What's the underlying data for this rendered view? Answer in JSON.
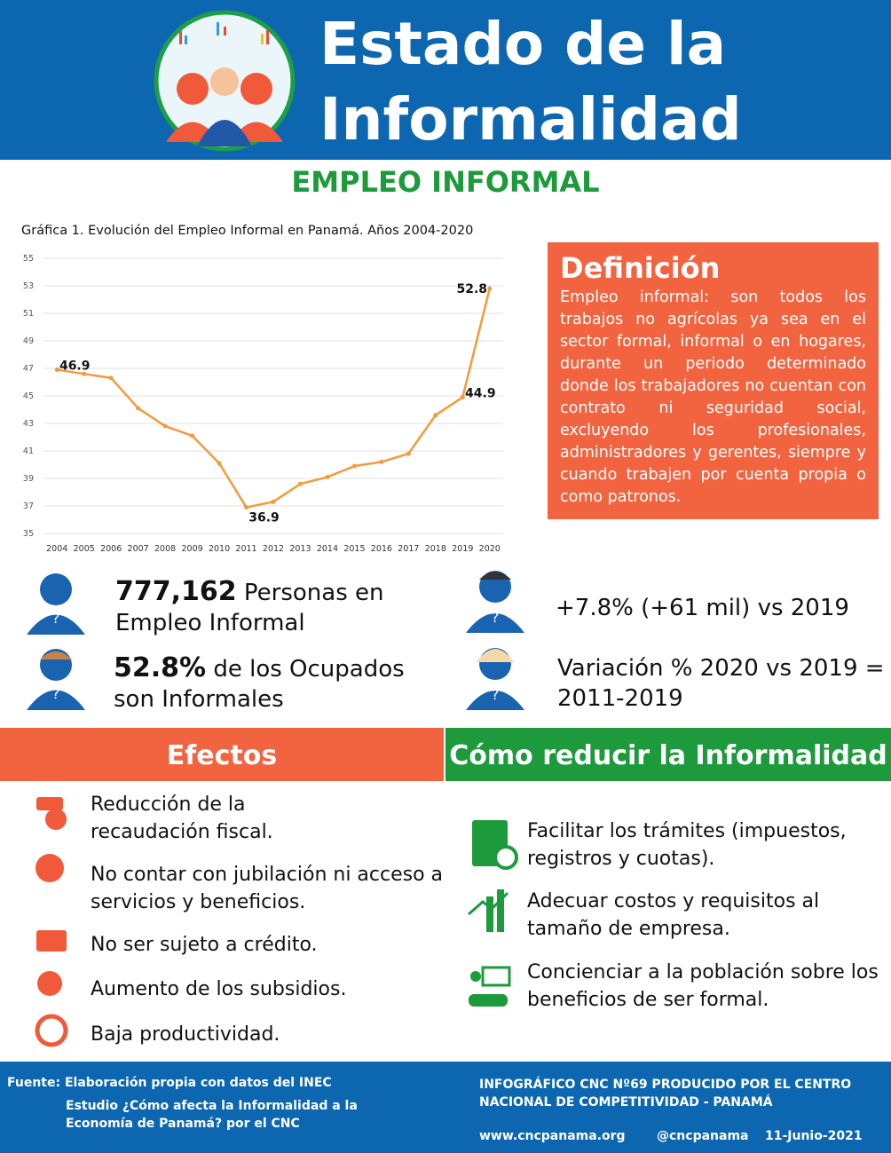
{
  "header": {
    "title_line1": "Estado de la",
    "title_line2": "Informalidad"
  },
  "section_title": "EMPLEO INFORMAL",
  "chart_data": {
    "type": "line",
    "title": "Gráfica 1. Evolución del Empleo Informal en Panamá. Años 2004-2020",
    "categories": [
      "2004",
      "2005",
      "2006",
      "2007",
      "2008",
      "2009",
      "2010",
      "2011",
      "2012",
      "2013",
      "2014",
      "2015",
      "2016",
      "2017",
      "2018",
      "2019",
      "2020"
    ],
    "values": [
      46.9,
      46.6,
      46.3,
      44.1,
      42.8,
      42.1,
      40.1,
      36.9,
      37.3,
      38.6,
      39.1,
      39.9,
      40.2,
      40.8,
      43.6,
      44.9,
      52.8
    ],
    "color": "#f39a3c",
    "ylim": [
      35,
      55
    ],
    "yticks": [
      35,
      37,
      39,
      41,
      43,
      45,
      47,
      49,
      51,
      53,
      55
    ],
    "grid": true,
    "labeled": [
      0,
      7,
      15,
      16
    ]
  },
  "definition": {
    "title": "Definición",
    "text": "Empleo informal: son todos los trabajos no agrícolas ya sea en el sector formal, informal o en hogares, durante un periodo determinado donde los trabajadores no cuentan con contrato ni seguridad social, excluyendo los profesionales, administradores y gerentes, siempre y cuando trabajen por cuenta propia o como patronos."
  },
  "stats": [
    {
      "strong": "777,162",
      "text": "Personas en Empleo Informal"
    },
    {
      "strong": "52.8%",
      "text": "de los Ocupados son Informales"
    },
    {
      "text": "+7.8% (+61 mil) vs 2019"
    },
    {
      "text": "Variación % 2020 vs 2019 = 2011-2019"
    }
  ],
  "effects": {
    "title": "Efectos",
    "items": [
      "Reducción de la recaudación fiscal.",
      "No contar con jubilación ni acceso a servicios y beneficios.",
      "No ser sujeto a crédito.",
      "Aumento de los subsidios.",
      "Baja productividad."
    ]
  },
  "reduce": {
    "title": "Cómo reducir la Informalidad",
    "items": [
      "Facilitar los trámites (impuestos, registros y cuotas).",
      "Adecuar costos y requisitos al tamaño de empresa.",
      "Concienciar a la población sobre los beneficios de ser formal."
    ]
  },
  "footer": {
    "source": "Fuente: Elaboración propia con datos del INEC",
    "study": "Estudio ¿Cómo afecta la Informalidad a la Economía de Panamá? por el CNC",
    "credit": "INFOGRÁFICO CNC Nº69 PRODUCIDO POR EL CENTRO NACIONAL DE COMPETITIVIDAD - PANAMÁ",
    "website": "www.cncpanama.org",
    "handle": "@cncpanama",
    "date": "11-Junio-2021"
  }
}
